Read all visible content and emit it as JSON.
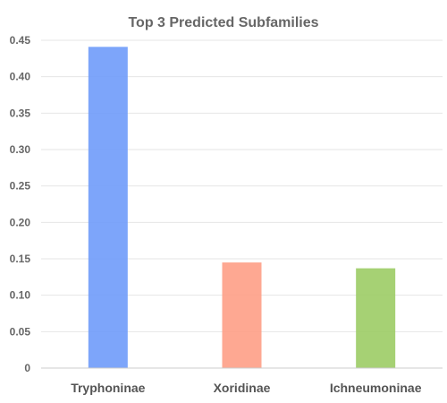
{
  "chart_data": {
    "type": "bar",
    "title": "Top 3 Predicted Subfamilies",
    "xlabel": "",
    "ylabel": "",
    "categories": [
      "Tryphoninae",
      "Xoridinae",
      "Ichneumoninae"
    ],
    "values": [
      0.441,
      0.145,
      0.137
    ],
    "colors": [
      "#6f9bfa",
      "#fe9f86",
      "#9ccc65"
    ],
    "ylim": [
      0,
      0.45
    ],
    "yticks": [
      "0",
      "0.05",
      "0.10",
      "0.15",
      "0.20",
      "0.25",
      "0.30",
      "0.35",
      "0.40",
      "0.45"
    ],
    "grid": true,
    "legend": "none"
  }
}
